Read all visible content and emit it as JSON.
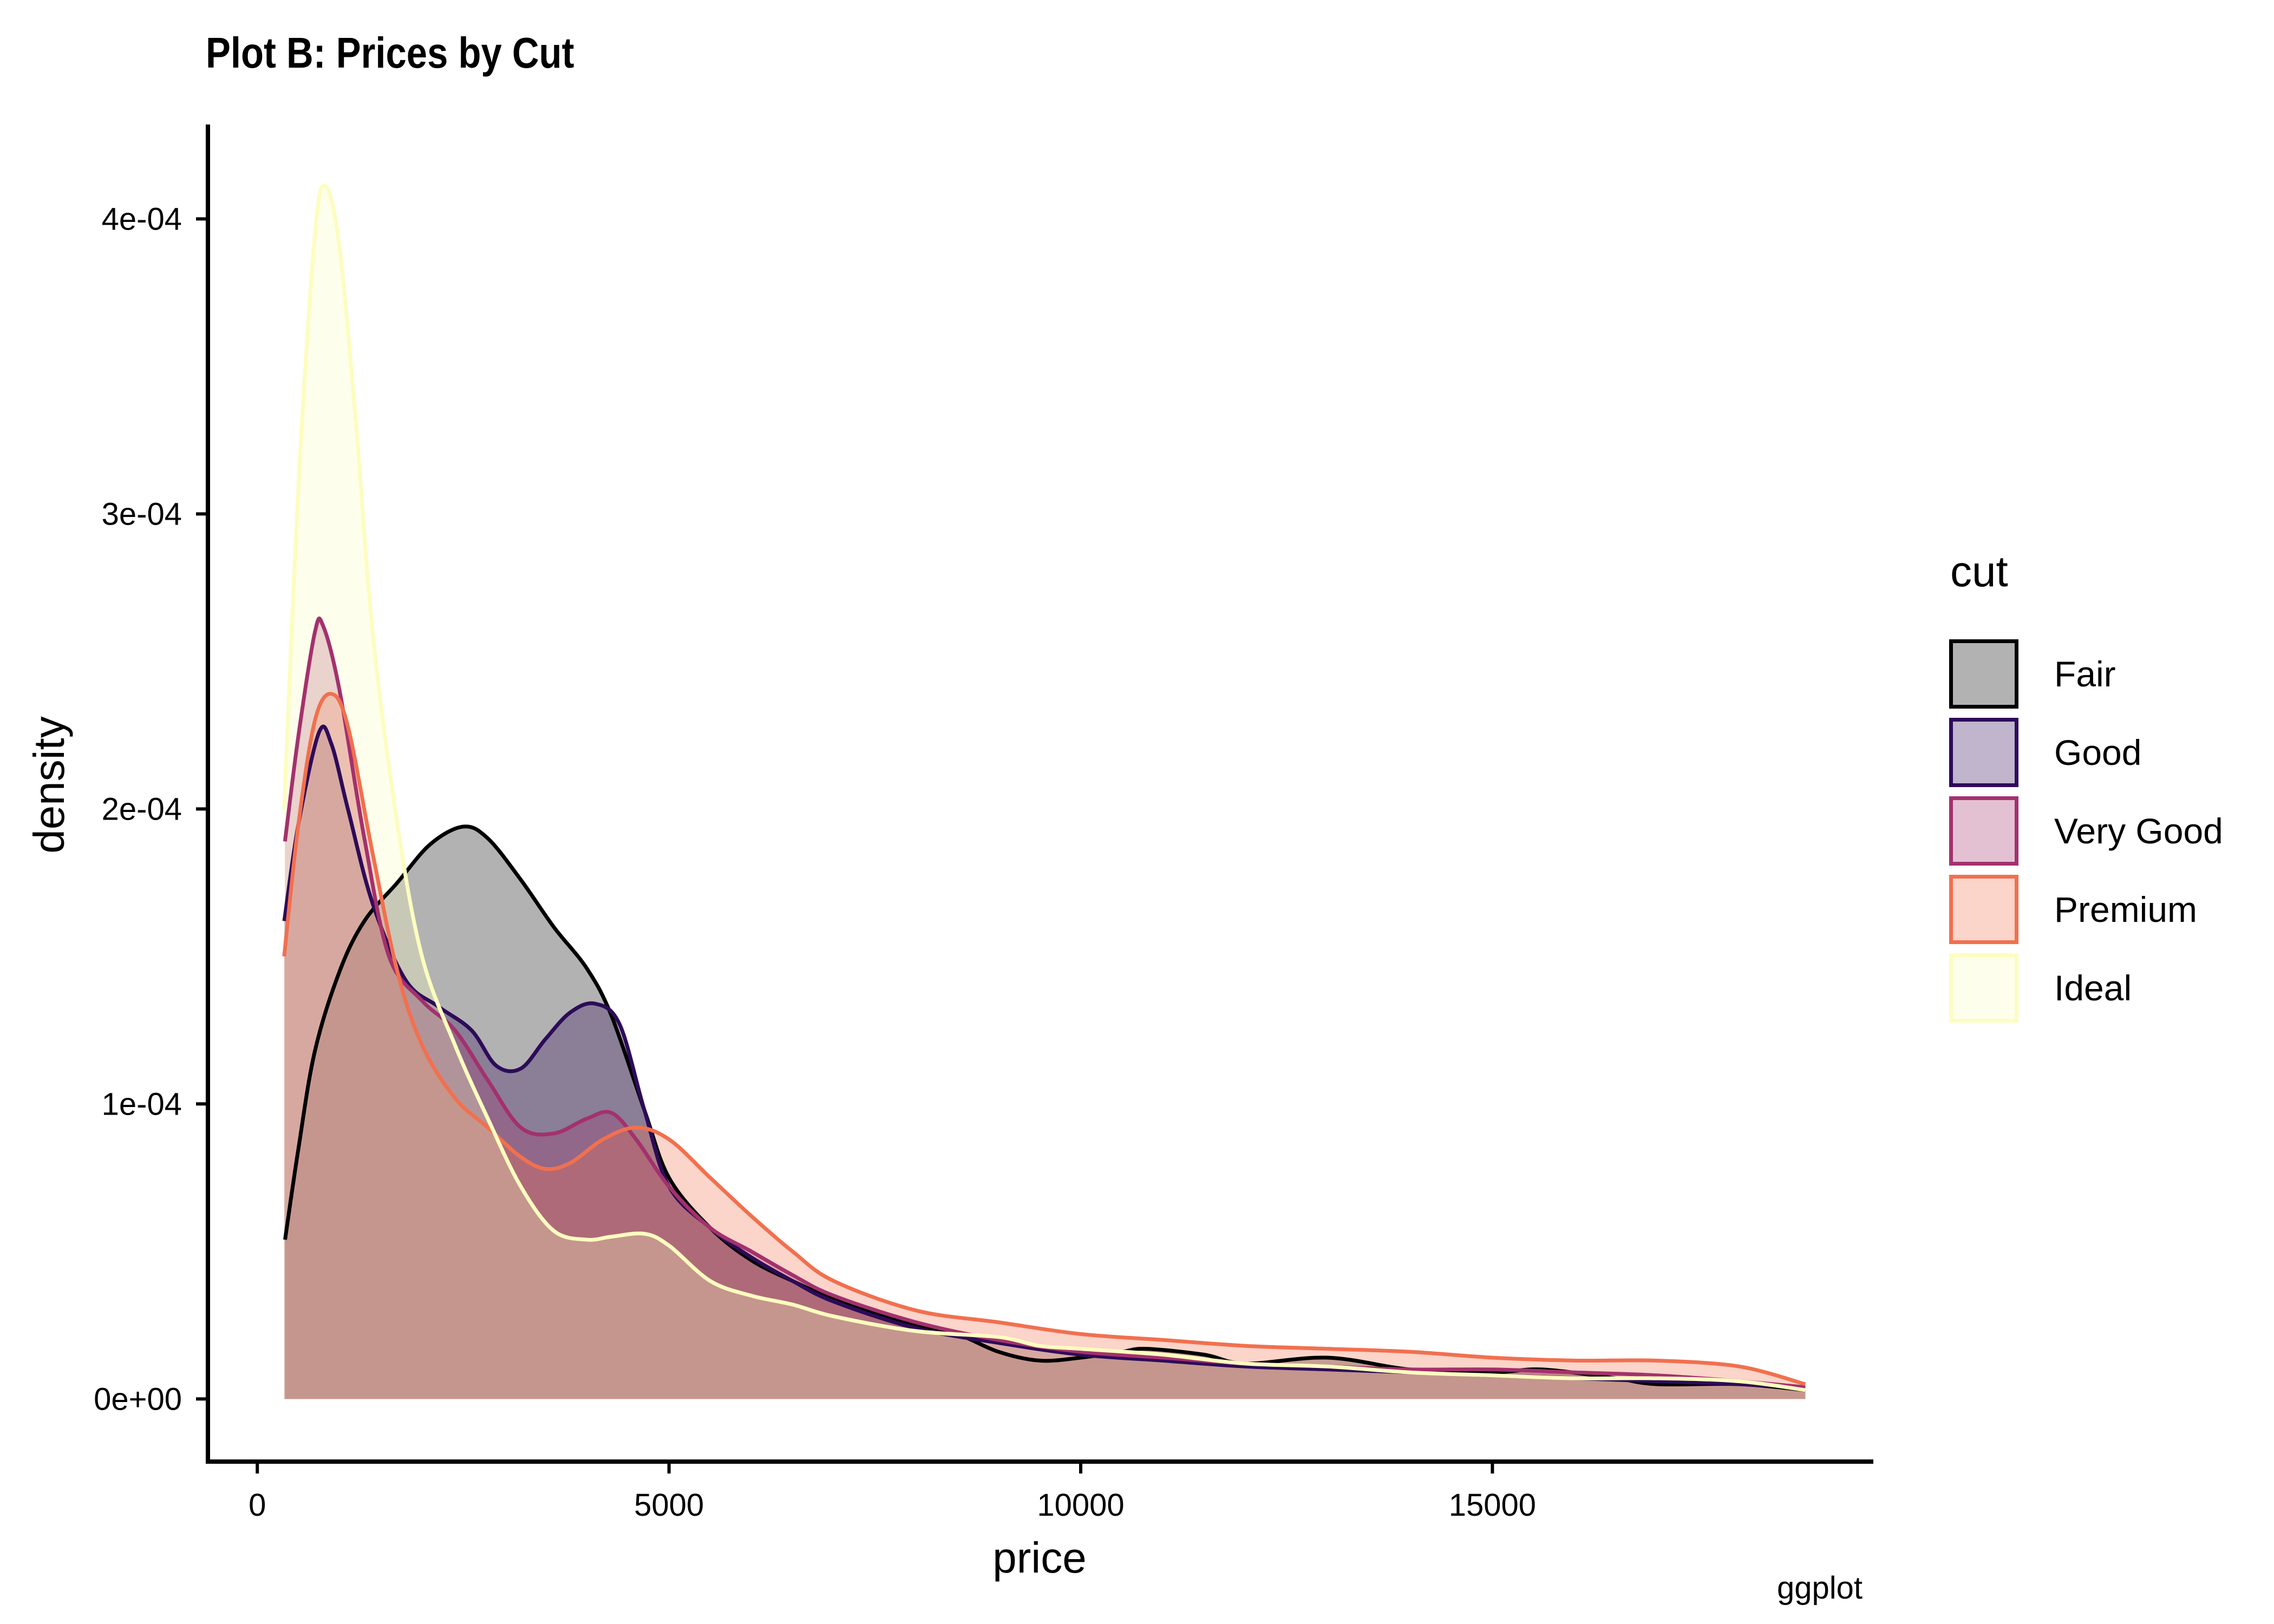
{
  "chart_data": {
    "type": "area",
    "title": "Plot B: Prices by Cut",
    "caption": "ggplot",
    "xlabel": "price",
    "ylabel": "density",
    "xlim": [
      -600,
      19600
    ],
    "ylim": [
      -2.05e-05,
      0.000432
    ],
    "x_ticks": [
      0,
      5000,
      10000,
      15000
    ],
    "x_tick_labels": [
      "0",
      "5000",
      "10000",
      "15000"
    ],
    "y_ticks": [
      0,
      0.0001,
      0.0002,
      0.0003,
      0.0004
    ],
    "y_tick_labels": [
      "0e+00",
      "1e-04",
      "2e-04",
      "3e-04",
      "4e-04"
    ],
    "grid": false,
    "legend": {
      "title": "cut",
      "position": "right"
    },
    "series": [
      {
        "name": "Fair",
        "color": "#000000",
        "fill": "rgba(0,0,0,0.30)",
        "points": [
          [
            337,
            5.4e-05
          ],
          [
            500,
            8.5e-05
          ],
          [
            700,
            0.000118
          ],
          [
            1000,
            0.000145
          ],
          [
            1300,
            0.000162
          ],
          [
            1700,
            0.000175
          ],
          [
            2100,
            0.000188
          ],
          [
            2500,
            0.000194
          ],
          [
            2800,
            0.00019
          ],
          [
            3200,
            0.000176
          ],
          [
            3600,
            0.00016
          ],
          [
            4000,
            0.000146
          ],
          [
            4300,
            0.00013
          ],
          [
            4700,
            9.8e-05
          ],
          [
            5000,
            7.5e-05
          ],
          [
            5500,
            5.8e-05
          ],
          [
            6000,
            4.7e-05
          ],
          [
            6500,
            4e-05
          ],
          [
            7000,
            3.4e-05
          ],
          [
            8000,
            2.5e-05
          ],
          [
            8500,
            2.2e-05
          ],
          [
            9000,
            1.6e-05
          ],
          [
            9500,
            1.3e-05
          ],
          [
            10000,
            1.4e-05
          ],
          [
            10500,
            1.6e-05
          ],
          [
            10800,
            1.7e-05
          ],
          [
            11500,
            1.5e-05
          ],
          [
            12000,
            1.2e-05
          ],
          [
            13000,
            1.4e-05
          ],
          [
            14000,
            1e-05
          ],
          [
            15000,
            9e-06
          ],
          [
            15600,
            1e-05
          ],
          [
            16500,
            7e-06
          ],
          [
            17000,
            5e-06
          ],
          [
            18000,
            5e-06
          ],
          [
            18800,
            3e-06
          ]
        ]
      },
      {
        "name": "Good",
        "color": "#2D0B59",
        "fill": "rgba(45,11,89,0.30)",
        "points": [
          [
            327,
            0.000162
          ],
          [
            500,
            0.000195
          ],
          [
            750,
            0.000226
          ],
          [
            900,
            0.000222
          ],
          [
            1100,
            0.0002
          ],
          [
            1400,
            0.000168
          ],
          [
            1800,
            0.000142
          ],
          [
            2200,
            0.000133
          ],
          [
            2600,
            0.000125
          ],
          [
            2900,
            0.000113
          ],
          [
            3200,
            0.000112
          ],
          [
            3500,
            0.000122
          ],
          [
            3800,
            0.000131
          ],
          [
            4100,
            0.000134
          ],
          [
            4400,
            0.000127
          ],
          [
            4700,
            9.8e-05
          ],
          [
            5000,
            7.2e-05
          ],
          [
            5500,
            5.8e-05
          ],
          [
            6000,
            4.8e-05
          ],
          [
            6500,
            4e-05
          ],
          [
            7000,
            3.3e-05
          ],
          [
            8000,
            2.4e-05
          ],
          [
            9000,
            1.9e-05
          ],
          [
            10000,
            1.5e-05
          ],
          [
            11000,
            1.3e-05
          ],
          [
            12000,
            1.1e-05
          ],
          [
            13000,
            1e-05
          ],
          [
            14000,
            9e-06
          ],
          [
            15000,
            8e-06
          ],
          [
            16000,
            7e-06
          ],
          [
            17000,
            6e-06
          ],
          [
            18000,
            5e-06
          ],
          [
            18800,
            4e-06
          ]
        ]
      },
      {
        "name": "Very Good",
        "color": "#A3316D",
        "fill": "rgba(163,49,109,0.30)",
        "points": [
          [
            336,
            0.000189
          ],
          [
            500,
            0.000225
          ],
          [
            700,
            0.00026
          ],
          [
            800,
            0.000262
          ],
          [
            1000,
            0.00024
          ],
          [
            1300,
            0.00019
          ],
          [
            1600,
            0.00015
          ],
          [
            2000,
            0.000135
          ],
          [
            2400,
            0.000125
          ],
          [
            2800,
            0.000108
          ],
          [
            3200,
            9.2e-05
          ],
          [
            3600,
            9e-05
          ],
          [
            4000,
            9.5e-05
          ],
          [
            4300,
            9.7e-05
          ],
          [
            4600,
            8.8e-05
          ],
          [
            5000,
            7.2e-05
          ],
          [
            5500,
            5.8e-05
          ],
          [
            6000,
            5e-05
          ],
          [
            6500,
            4.2e-05
          ],
          [
            7000,
            3.5e-05
          ],
          [
            8000,
            2.6e-05
          ],
          [
            9000,
            2e-05
          ],
          [
            10000,
            1.6e-05
          ],
          [
            11000,
            1.4e-05
          ],
          [
            12000,
            1.2e-05
          ],
          [
            13000,
            1.1e-05
          ],
          [
            14000,
            1e-05
          ],
          [
            15000,
            1e-05
          ],
          [
            16000,
            9e-06
          ],
          [
            17000,
            8e-06
          ],
          [
            18000,
            6e-06
          ],
          [
            18800,
            4e-06
          ]
        ]
      },
      {
        "name": "Premium",
        "color": "#F1704F",
        "fill": "rgba(241,112,79,0.30)",
        "points": [
          [
            326,
            0.00015
          ],
          [
            500,
            0.000195
          ],
          [
            700,
            0.00023
          ],
          [
            900,
            0.000239
          ],
          [
            1100,
            0.000228
          ],
          [
            1400,
            0.000185
          ],
          [
            1700,
            0.000145
          ],
          [
            2000,
            0.00012
          ],
          [
            2400,
            0.000102
          ],
          [
            2800,
            9.2e-05
          ],
          [
            3200,
            8.2e-05
          ],
          [
            3500,
            7.8e-05
          ],
          [
            3800,
            8e-05
          ],
          [
            4200,
            8.8e-05
          ],
          [
            4600,
            9.2e-05
          ],
          [
            5000,
            8.8e-05
          ],
          [
            5500,
            7.5e-05
          ],
          [
            6000,
            6.2e-05
          ],
          [
            6500,
            5e-05
          ],
          [
            7000,
            4e-05
          ],
          [
            8000,
            3e-05
          ],
          [
            9000,
            2.6e-05
          ],
          [
            10000,
            2.2e-05
          ],
          [
            11000,
            2e-05
          ],
          [
            12000,
            1.8e-05
          ],
          [
            13000,
            1.7e-05
          ],
          [
            14000,
            1.6e-05
          ],
          [
            15000,
            1.4e-05
          ],
          [
            16000,
            1.3e-05
          ],
          [
            17000,
            1.3e-05
          ],
          [
            18000,
            1.1e-05
          ],
          [
            18800,
            5e-06
          ]
        ]
      },
      {
        "name": "Ideal",
        "color": "#FCFDBF",
        "fill": "rgba(252,253,191,0.30)",
        "points": [
          [
            326,
            0.0002
          ],
          [
            500,
            0.00031
          ],
          [
            700,
            0.000395
          ],
          [
            830,
            0.000411
          ],
          [
            1000,
            0.00039
          ],
          [
            1200,
            0.00033
          ],
          [
            1400,
            0.00026
          ],
          [
            1700,
            0.000195
          ],
          [
            2000,
            0.00015
          ],
          [
            2400,
            0.00012
          ],
          [
            2800,
            9.5e-05
          ],
          [
            3200,
            7.2e-05
          ],
          [
            3600,
            5.7e-05
          ],
          [
            4000,
            5.4e-05
          ],
          [
            4300,
            5.5e-05
          ],
          [
            4700,
            5.6e-05
          ],
          [
            5000,
            5.2e-05
          ],
          [
            5500,
            4e-05
          ],
          [
            6000,
            3.5e-05
          ],
          [
            6500,
            3.2e-05
          ],
          [
            7000,
            2.8e-05
          ],
          [
            8000,
            2.3e-05
          ],
          [
            9000,
            2.1e-05
          ],
          [
            9500,
            1.8e-05
          ],
          [
            10000,
            1.7e-05
          ],
          [
            11000,
            1.5e-05
          ],
          [
            12000,
            1.2e-05
          ],
          [
            13000,
            1.1e-05
          ],
          [
            14000,
            9e-06
          ],
          [
            15000,
            8e-06
          ],
          [
            16000,
            7e-06
          ],
          [
            17000,
            7e-06
          ],
          [
            18000,
            6e-06
          ],
          [
            18800,
            3e-06
          ]
        ]
      }
    ]
  }
}
